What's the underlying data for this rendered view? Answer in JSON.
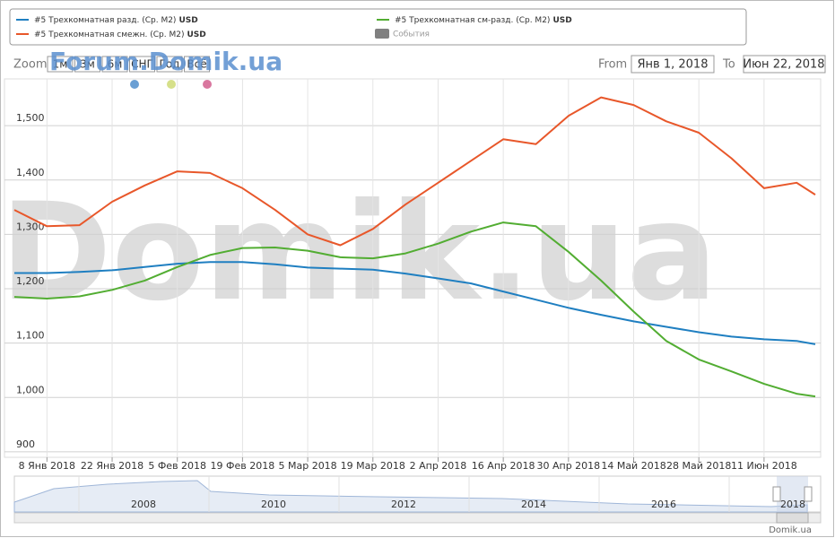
{
  "chart_data": {
    "type": "line",
    "x": [
      "2018-01-01",
      "2018-01-08",
      "2018-01-15",
      "2018-01-22",
      "2018-01-29",
      "2018-02-05",
      "2018-02-12",
      "2018-02-19",
      "2018-02-26",
      "2018-03-05",
      "2018-03-12",
      "2018-03-19",
      "2018-03-26",
      "2018-04-02",
      "2018-04-09",
      "2018-04-16",
      "2018-04-23",
      "2018-04-30",
      "2018-05-07",
      "2018-05-14",
      "2018-05-21",
      "2018-05-28",
      "2018-06-04",
      "2018-06-11",
      "2018-06-18",
      "2018-06-22"
    ],
    "unit": "USD",
    "series": [
      {
        "name": "#5 Трехкомнатная разд. (Ср. М2)",
        "color": "#1f7fc1",
        "values": [
          1229,
          1229,
          1231,
          1234,
          1240,
          1246,
          1249,
          1249,
          1245,
          1239,
          1237,
          1235,
          1228,
          1219,
          1210,
          1195,
          1180,
          1165,
          1152,
          1140,
          1130,
          1120,
          1112,
          1107,
          1104,
          1098
        ]
      },
      {
        "name": "#5 Трехкомнатная смежн. (Ср. М2)",
        "color": "#e8572a",
        "values": [
          1345,
          1315,
          1317,
          1360,
          1390,
          1416,
          1413,
          1385,
          1345,
          1300,
          1280,
          1310,
          1355,
          1395,
          1435,
          1475,
          1466,
          1518,
          1552,
          1538,
          1508,
          1487,
          1440,
          1385,
          1395,
          1373
        ]
      },
      {
        "name": "#5 Трехкомнатная см-разд. (Ср. М2)",
        "color": "#52ad32",
        "values": [
          1185,
          1182,
          1186,
          1198,
          1215,
          1240,
          1262,
          1275,
          1276,
          1270,
          1258,
          1256,
          1265,
          1283,
          1305,
          1322,
          1315,
          1268,
          1215,
          1158,
          1104,
          1070,
          1048,
          1025,
          1007,
          1002
        ]
      }
    ],
    "events_label": "События",
    "xlim": [
      "2018-01-01",
      "2018-06-22"
    ],
    "xticks": [
      {
        "value": "2018-01-08",
        "label": "8 Янв 2018"
      },
      {
        "value": "2018-01-22",
        "label": "22 Янв 2018"
      },
      {
        "value": "2018-02-05",
        "label": "5 Фев 2018"
      },
      {
        "value": "2018-02-19",
        "label": "19 Фев 2018"
      },
      {
        "value": "2018-03-05",
        "label": "5 Мар 2018"
      },
      {
        "value": "2018-03-19",
        "label": "19 Мар 2018"
      },
      {
        "value": "2018-04-02",
        "label": "2 Апр 2018"
      },
      {
        "value": "2018-04-16",
        "label": "16 Апр 2018"
      },
      {
        "value": "2018-04-30",
        "label": "30 Апр 2018"
      },
      {
        "value": "2018-05-14",
        "label": "14 Май 2018"
      },
      {
        "value": "2018-05-28",
        "label": "28 Май 2018"
      },
      {
        "value": "2018-06-11",
        "label": "11 Июн 2018"
      }
    ],
    "ylim": [
      890,
      1586
    ],
    "yticks": [
      900,
      {
        "value": 1000,
        "label": "1,000"
      },
      {
        "value": 1100,
        "label": "1,100"
      },
      {
        "value": 1200,
        "label": "1,200"
      },
      {
        "value": 1300,
        "label": "1,300"
      },
      {
        "value": 1400,
        "label": "1,400"
      },
      {
        "value": 1500,
        "label": "1,500"
      }
    ],
    "grid": true,
    "zoom": {
      "label": "Zoom",
      "buttons": [
        "1м",
        "3м",
        "6м",
        "СНГ",
        "Год",
        "Всё"
      ]
    },
    "range": {
      "from_label": "From",
      "from": "Янв 1, 2018",
      "to_label": "To",
      "to": "Июн 22, 2018"
    },
    "watermark": "Forum.Domik.ua",
    "big_watermark": "Domik.ua",
    "navigator": {
      "labels": [
        "2008",
        "2010",
        "2012",
        "2014",
        "2016",
        "2018"
      ]
    },
    "credit": "Domik.ua"
  }
}
